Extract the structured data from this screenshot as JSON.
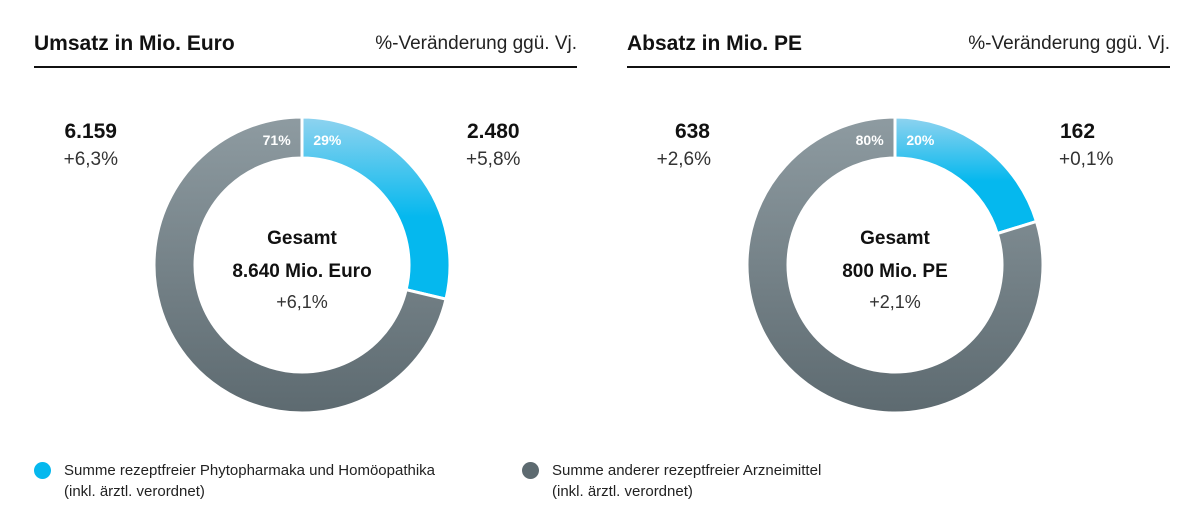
{
  "colors": {
    "light_segment": "#05b8ee",
    "light_segment_top": "#8fd3ef",
    "dark_segment": "#5d6a70",
    "dark_segment_top": "#8e9ba1"
  },
  "chart_data": [
    {
      "type": "pie",
      "title": "Umsatz in Mio. Euro",
      "subtitle": "%-Veränderung ggü. Vj.",
      "center": {
        "label": "Gesamt",
        "total": "8.640 Mio. Euro",
        "change": "+6,1%"
      },
      "slices": [
        {
          "value": 2480,
          "value_label": "2.480",
          "change": "+5,8%",
          "percent": 29,
          "percent_label": "29%",
          "legend_index": 0
        },
        {
          "value": 6159,
          "value_label": "6.159",
          "change": "+6,3%",
          "percent": 71,
          "percent_label": "71%",
          "legend_index": 1
        }
      ]
    },
    {
      "type": "pie",
      "title": "Absatz in Mio. PE",
      "subtitle": "%-Veränderung ggü. Vj.",
      "center": {
        "label": "Gesamt",
        "total": "800 Mio. PE",
        "change": "+2,1%"
      },
      "slices": [
        {
          "value": 162,
          "value_label": "162",
          "change": "+0,1%",
          "percent": 20,
          "percent_label": "20%",
          "legend_index": 0
        },
        {
          "value": 638,
          "value_label": "638",
          "change": "+2,6%",
          "percent": 80,
          "percent_label": "80%",
          "legend_index": 1
        }
      ]
    }
  ],
  "legend": [
    {
      "line1": "Summe rezeptfreier Phytopharmaka und Homöopathika",
      "line2": "(inkl. ärztl. verordnet)"
    },
    {
      "line1": "Summe anderer rezeptfreier Arzneimittel",
      "line2": "(inkl. ärztl. verordnet)"
    }
  ]
}
